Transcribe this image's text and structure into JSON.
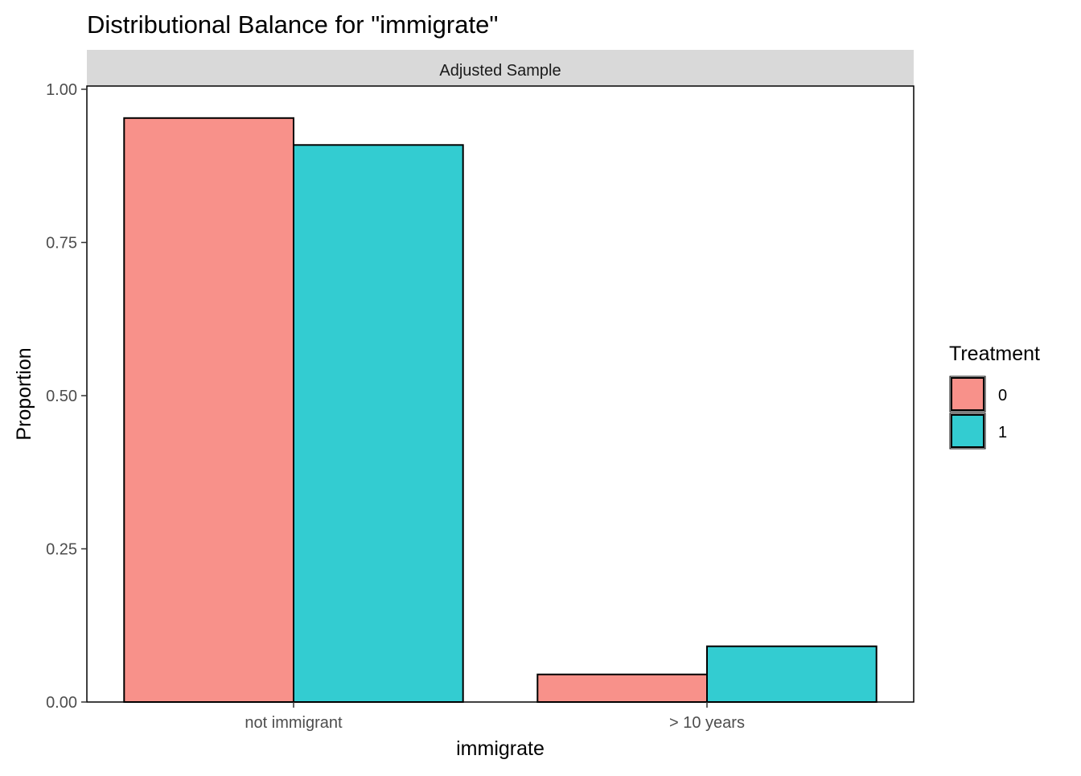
{
  "chart_data": {
    "type": "bar",
    "title": "Distributional Balance for \"immigrate\"",
    "facet_label": "Adjusted Sample",
    "xlabel": "immigrate",
    "ylabel": "Proportion",
    "categories": [
      "not immigrant",
      "> 10 years"
    ],
    "series": [
      {
        "name": "0",
        "values": [
          0.953,
          0.045
        ],
        "color": "#F8918A"
      },
      {
        "name": "1",
        "values": [
          0.909,
          0.091
        ],
        "color": "#33CCD1"
      }
    ],
    "ylim": [
      0,
      1.0
    ],
    "yticks": [
      0.0,
      0.25,
      0.5,
      0.75,
      1.0
    ],
    "ytick_labels": [
      "0.00",
      "0.25",
      "0.50",
      "0.75",
      "1.00"
    ],
    "legend": {
      "title": "Treatment",
      "placement": "right",
      "entries": [
        "0",
        "1"
      ]
    },
    "grid": false,
    "strip_color": "#D9D9D9",
    "bar_outline_color": "#000000"
  }
}
